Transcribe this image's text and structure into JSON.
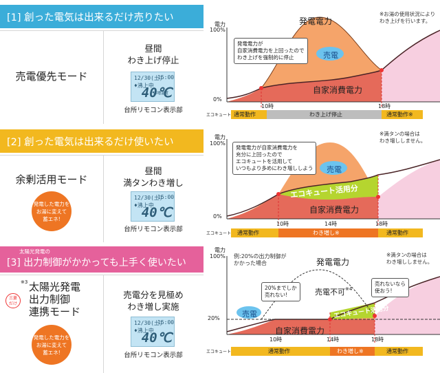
{
  "common": {
    "axis_unit": "電力",
    "pct100": "100%",
    "pct0": "0%",
    "t10": "10時",
    "t14": "14時",
    "t18": "18時",
    "ecocute": "エコキュート",
    "kitchen_remote": "台所リモコン表示部",
    "remote_date": "12/30(土)",
    "remote_time": "15:00",
    "remote_status": "♦沸上中",
    "remote_sub": "沸増温度",
    "remote_temp": "40℃"
  },
  "colors": {
    "blue": "#3badd9",
    "yellow": "#f2b81f",
    "pink": "#e5619b",
    "orange": "#ee7523",
    "gen_fill": "#f5a46a",
    "self_fill": "#e56a5a",
    "pink_fill": "#f7cfe0",
    "green": "#b5d52f"
  },
  "s1": {
    "header": "[1] 創った電気は出来るだけ売りたい",
    "mode": "売電優先モード",
    "sched1": "昼間",
    "sched2": "わき上げ停止",
    "callout": "発電電力が\n自家消費電力を上回ったので\nわき上げを強制的に停止",
    "gen_label": "発電電力",
    "sell_label": "売電",
    "self_label": "自家消費電力",
    "note": "※お湯の使用状況により\nわき上げを行います。",
    "seg_a": "通常動作",
    "seg_b": "わき上げ停止",
    "seg_c": "通常動作※"
  },
  "s2": {
    "header": "[2] 創った電気は出来るだけ使いたい",
    "mode": "余剰活用モード",
    "badge": "発電した電力を\nお湯に変えて\n蓄エネ!",
    "sched1": "昼間",
    "sched2": "満タンわき増し",
    "callout": "発電電力が自家消費電力を\n充分に上回ったので\nエコキュートを活用して\nいつもより多めにわき増ししよう",
    "sell_label": "売電",
    "ecocute_use": "エコキュート活用分",
    "self_label": "自家消費電力",
    "note": "※満タンの場合は\nわき増ししません。",
    "seg_a": "通常動作",
    "seg_b": "わき増し※",
    "seg_c": "通常動作"
  },
  "s3": {
    "header_small": "太陽光発電の",
    "header": "[3] 出力制御がかかっても上手く使いたい",
    "superscript": "※3",
    "only": "三菱\nだけ",
    "mode1": "太陽光発電",
    "mode2": "出力制御",
    "mode3": "連携モード",
    "badge": "発電した電力を\nお湯に変えて\n蓄エネ!",
    "sched1": "売電分を見極め",
    "sched2": "わき増し実施",
    "example": "例:20%の出力制御が\nかかった場合",
    "gen_label": "発電電力",
    "callout1": "20%までしか\n売れない!",
    "callout2": "売れないなら\n使おう!",
    "no_sell": "売電不可",
    "no_sell_sup": "※4",
    "sell_label": "売電",
    "ecocute_use": "エコキュート活用分",
    "self_label": "自家消費電力",
    "pct20": "20%",
    "note": "※満タンの場合は\nわき増ししません。",
    "seg_a": "通常動作",
    "seg_b": "わき増し※",
    "seg_c": "通常動作"
  }
}
